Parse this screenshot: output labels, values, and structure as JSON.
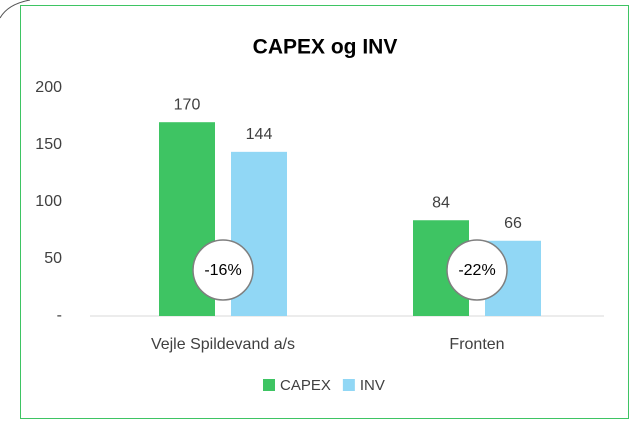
{
  "chart_data": {
    "type": "bar",
    "title": "CAPEX og INV",
    "categories": [
      "Vejle Spildevand a/s",
      "Fronten"
    ],
    "series": [
      {
        "name": "CAPEX",
        "color": "#3ec463",
        "values": [
          170,
          84
        ]
      },
      {
        "name": "INV",
        "color": "#91d7f5",
        "values": [
          144,
          66
        ]
      }
    ],
    "annotations": [
      "-16%",
      "-22%"
    ],
    "ylim": [
      0,
      200
    ],
    "yticks": [
      {
        "value": 0,
        "label": "-"
      },
      50,
      100,
      150,
      200
    ],
    "grid": false,
    "legend": "bottom"
  }
}
